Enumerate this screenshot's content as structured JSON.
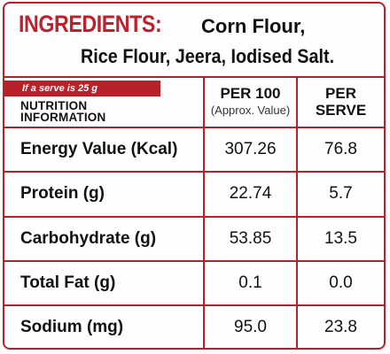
{
  "ingredients": {
    "title": "INGREDIENTS:",
    "line1": "Corn Flour,",
    "line2": "Rice Flour, Jeera, Iodised Salt."
  },
  "nutrition": {
    "serve_note": "If a serve is 25 g",
    "info_line1": "NUTRITION",
    "info_line2": "INFORMATION",
    "col_per100": "PER 100",
    "col_per100_sub": "(Approx. Value)",
    "col_serve_line1": "PER",
    "col_serve_line2": "SERVE",
    "rows": [
      {
        "name": "Energy Value (Kcal)",
        "per100": "307.26",
        "serve": "76.8"
      },
      {
        "name": "Protein (g)",
        "per100": "22.74",
        "serve": "5.7"
      },
      {
        "name": "Carbohydrate (g)",
        "per100": "53.85",
        "serve": "13.5"
      },
      {
        "name": "Total Fat (g)",
        "per100": "0.1",
        "serve": "0.0"
      },
      {
        "name": "Sodium (mg)",
        "per100": "95.0",
        "serve": "23.8"
      }
    ]
  },
  "colors": {
    "accent_red": "#b8202a",
    "text": "#111111"
  }
}
